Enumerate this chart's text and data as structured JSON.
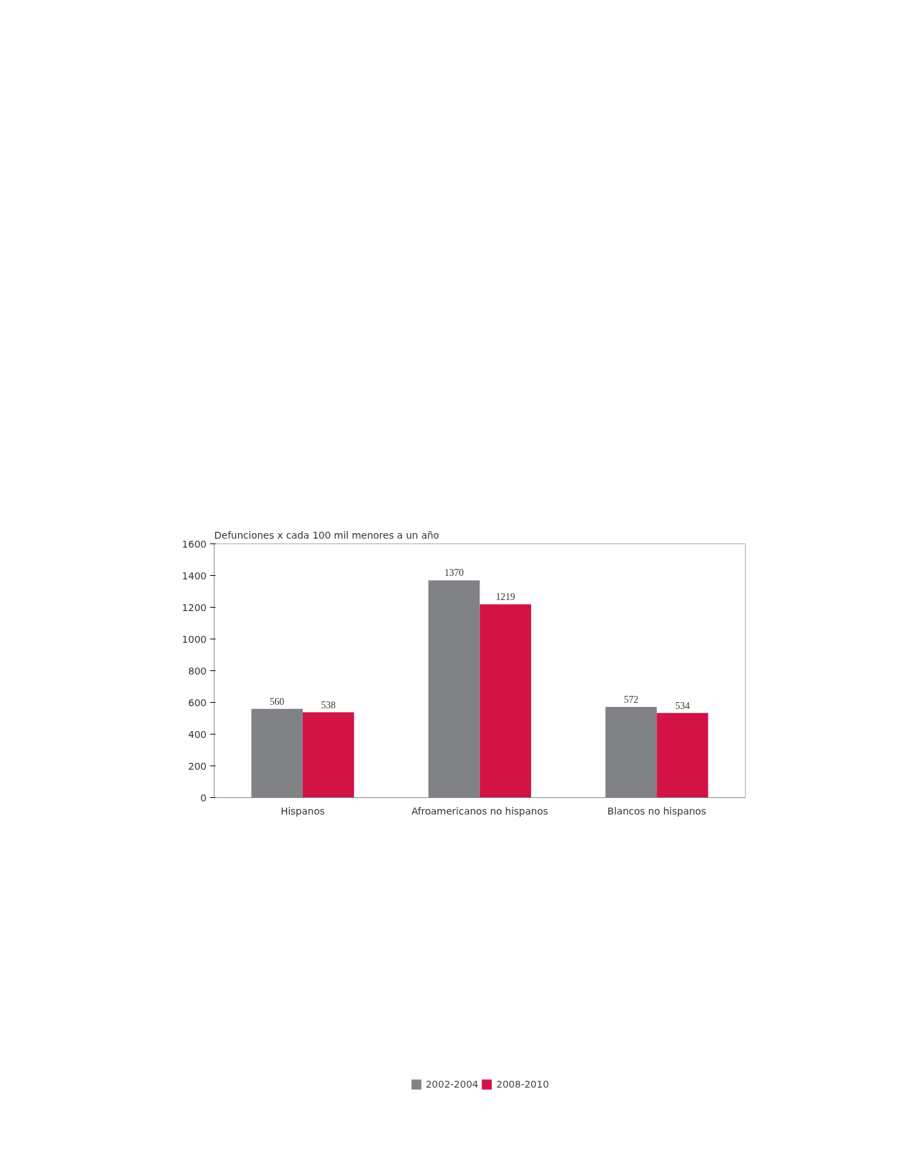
{
  "chart_data": {
    "type": "bar",
    "title": "Defunciones x cada 100 mil menores a un año",
    "categories": [
      "Hispanos",
      "Afroamericanos no hispanos",
      "Blancos no hispanos"
    ],
    "series": [
      {
        "name": "2002-2004",
        "color": "#818286",
        "values": [
          560,
          1370,
          572
        ]
      },
      {
        "name": "2008-2010",
        "color": "#d31245",
        "values": [
          538,
          1219,
          534
        ]
      }
    ],
    "ylim": [
      0,
      1600
    ],
    "yticks": [
      0,
      200,
      400,
      600,
      800,
      1000,
      1200,
      1400,
      1600
    ],
    "data_labels": true,
    "grid": false,
    "legend": "bottom"
  }
}
